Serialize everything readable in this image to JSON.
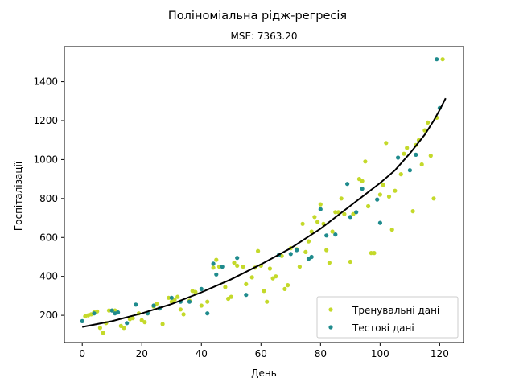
{
  "chart_data": {
    "type": "scatter",
    "title": "Поліноміальна рідж-регресія",
    "subtitle": "MSE: 7363.20",
    "xlabel": "День",
    "ylabel": "Госпіталізації",
    "xlim": [
      -6,
      128
    ],
    "ylim": [
      60,
      1580
    ],
    "x_ticks": [
      0,
      20,
      40,
      60,
      80,
      100,
      120
    ],
    "y_ticks": [
      200,
      400,
      600,
      800,
      1000,
      1200,
      1400
    ],
    "grid": false,
    "legend_position": "lower-right",
    "series": [
      {
        "name": "Тренувальні дані",
        "kind": "scatter",
        "color": "#c4d92a",
        "points": [
          [
            1,
            195
          ],
          [
            2,
            200
          ],
          [
            3,
            205
          ],
          [
            4,
            215
          ],
          [
            5,
            220
          ],
          [
            6,
            135
          ],
          [
            7,
            110
          ],
          [
            8,
            160
          ],
          [
            9,
            225
          ],
          [
            11,
            225
          ],
          [
            13,
            145
          ],
          [
            14,
            135
          ],
          [
            16,
            180
          ],
          [
            17,
            185
          ],
          [
            19,
            210
          ],
          [
            20,
            175
          ],
          [
            21,
            165
          ],
          [
            22,
            210
          ],
          [
            24,
            245
          ],
          [
            25,
            260
          ],
          [
            27,
            155
          ],
          [
            29,
            290
          ],
          [
            30,
            270
          ],
          [
            31,
            280
          ],
          [
            32,
            295
          ],
          [
            33,
            230
          ],
          [
            34,
            205
          ],
          [
            36,
            275
          ],
          [
            37,
            325
          ],
          [
            38,
            320
          ],
          [
            40,
            250
          ],
          [
            42,
            270
          ],
          [
            44,
            445
          ],
          [
            45,
            485
          ],
          [
            46,
            450
          ],
          [
            48,
            345
          ],
          [
            49,
            285
          ],
          [
            50,
            295
          ],
          [
            51,
            470
          ],
          [
            52,
            455
          ],
          [
            54,
            450
          ],
          [
            55,
            360
          ],
          [
            57,
            395
          ],
          [
            58,
            445
          ],
          [
            59,
            530
          ],
          [
            60,
            455
          ],
          [
            61,
            325
          ],
          [
            62,
            270
          ],
          [
            63,
            440
          ],
          [
            64,
            390
          ],
          [
            65,
            400
          ],
          [
            67,
            505
          ],
          [
            68,
            335
          ],
          [
            69,
            355
          ],
          [
            70,
            545
          ],
          [
            72,
            540
          ],
          [
            73,
            450
          ],
          [
            74,
            670
          ],
          [
            75,
            525
          ],
          [
            76,
            580
          ],
          [
            77,
            630
          ],
          [
            78,
            705
          ],
          [
            79,
            680
          ],
          [
            80,
            770
          ],
          [
            81,
            670
          ],
          [
            82,
            535
          ],
          [
            83,
            470
          ],
          [
            84,
            630
          ],
          [
            85,
            730
          ],
          [
            86,
            730
          ],
          [
            87,
            800
          ],
          [
            88,
            720
          ],
          [
            90,
            475
          ],
          [
            91,
            720
          ],
          [
            93,
            900
          ],
          [
            94,
            890
          ],
          [
            95,
            990
          ],
          [
            96,
            760
          ],
          [
            97,
            520
          ],
          [
            98,
            520
          ],
          [
            100,
            820
          ],
          [
            101,
            870
          ],
          [
            102,
            1085
          ],
          [
            103,
            810
          ],
          [
            104,
            640
          ],
          [
            105,
            840
          ],
          [
            107,
            925
          ],
          [
            108,
            1030
          ],
          [
            109,
            1060
          ],
          [
            111,
            735
          ],
          [
            112,
            1075
          ],
          [
            113,
            1100
          ],
          [
            114,
            975
          ],
          [
            115,
            1150
          ],
          [
            116,
            1190
          ],
          [
            117,
            1020
          ],
          [
            118,
            800
          ],
          [
            119,
            1215
          ],
          [
            121,
            1515
          ]
        ]
      },
      {
        "name": "Тестові дані",
        "kind": "scatter",
        "color": "#1f8b8d",
        "points": [
          [
            0,
            170
          ],
          [
            4,
            210
          ],
          [
            10,
            225
          ],
          [
            11,
            210
          ],
          [
            12,
            215
          ],
          [
            15,
            160
          ],
          [
            18,
            255
          ],
          [
            22,
            210
          ],
          [
            24,
            250
          ],
          [
            26,
            235
          ],
          [
            30,
            290
          ],
          [
            33,
            270
          ],
          [
            36,
            270
          ],
          [
            40,
            335
          ],
          [
            42,
            210
          ],
          [
            44,
            465
          ],
          [
            45,
            410
          ],
          [
            47,
            450
          ],
          [
            52,
            495
          ],
          [
            55,
            305
          ],
          [
            66,
            510
          ],
          [
            70,
            515
          ],
          [
            72,
            535
          ],
          [
            76,
            490
          ],
          [
            77,
            500
          ],
          [
            80,
            745
          ],
          [
            82,
            610
          ],
          [
            85,
            615
          ],
          [
            89,
            875
          ],
          [
            90,
            705
          ],
          [
            92,
            730
          ],
          [
            94,
            850
          ],
          [
            99,
            795
          ],
          [
            100,
            675
          ],
          [
            106,
            1010
          ],
          [
            110,
            945
          ],
          [
            112,
            1025
          ],
          [
            119,
            1515
          ],
          [
            120,
            1265
          ]
        ]
      },
      {
        "name": "",
        "kind": "line",
        "color": "#000000",
        "points": [
          [
            0,
            140
          ],
          [
            10,
            170
          ],
          [
            20,
            210
          ],
          [
            30,
            258
          ],
          [
            40,
            318
          ],
          [
            50,
            385
          ],
          [
            60,
            462
          ],
          [
            70,
            545
          ],
          [
            80,
            645
          ],
          [
            90,
            762
          ],
          [
            100,
            880
          ],
          [
            105,
            945
          ],
          [
            110,
            1032
          ],
          [
            115,
            1128
          ],
          [
            118,
            1200
          ],
          [
            120,
            1255
          ],
          [
            121,
            1285
          ],
          [
            122,
            1315
          ]
        ]
      }
    ]
  }
}
